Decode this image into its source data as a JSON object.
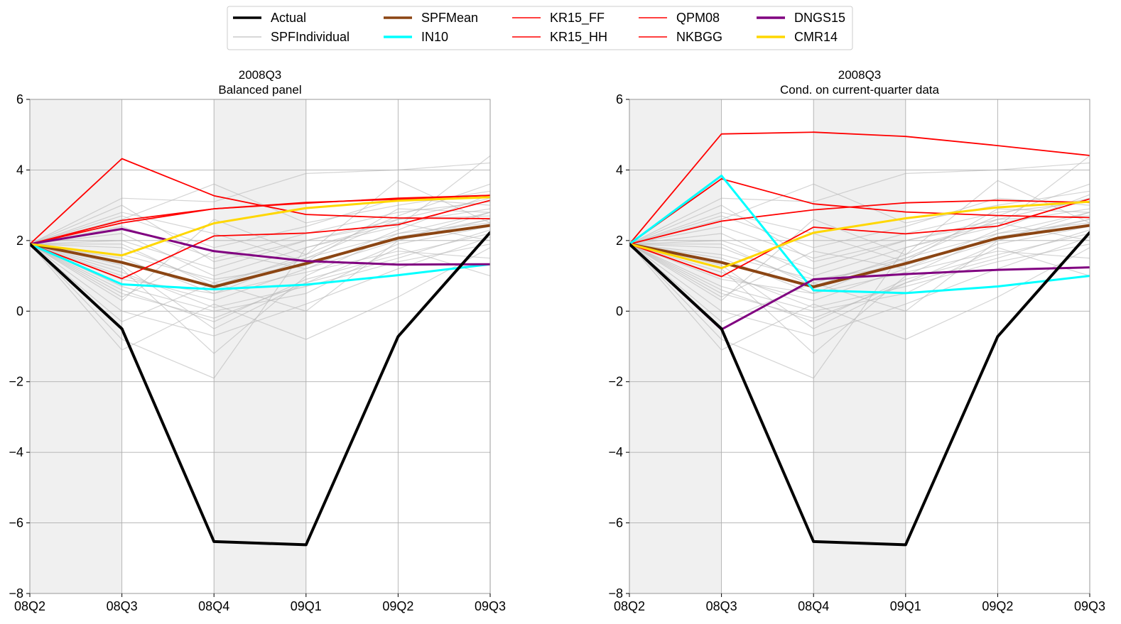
{
  "legend": {
    "entries": [
      {
        "label": "Actual",
        "color": "#000000",
        "style": "thick"
      },
      {
        "label": "SPFIndividual",
        "color": "#cccccc",
        "style": "thin"
      },
      {
        "label": "SPFMean",
        "color": "#8b4513",
        "style": "thick"
      },
      {
        "label": "IN10",
        "color": "#00ffff",
        "style": "thick"
      },
      {
        "label": "KR15_FF",
        "color": "#ff0000",
        "style": "thin"
      },
      {
        "label": "KR15_HH",
        "color": "#ff0000",
        "style": "thin"
      },
      {
        "label": "QPM08",
        "color": "#ff0000",
        "style": "thin"
      },
      {
        "label": "NKBGG",
        "color": "#ff0000",
        "style": "thin"
      },
      {
        "label": "DNGS15",
        "color": "#800080",
        "style": "thick"
      },
      {
        "label": "CMR14",
        "color": "#ffd700",
        "style": "thick"
      }
    ]
  },
  "chart_data": [
    {
      "type": "line",
      "title": "2008Q3",
      "subtitle": "Balanced panel",
      "xlabel": "",
      "ylabel": "",
      "categories": [
        "08Q2",
        "08Q3",
        "08Q4",
        "09Q1",
        "09Q2",
        "09Q3"
      ],
      "ylim": [
        -8,
        6
      ],
      "yticks": [
        -8,
        -6,
        -4,
        -2,
        0,
        2,
        4,
        6
      ],
      "grid": true,
      "shaded_categories": [
        "08Q2",
        "08Q4"
      ],
      "spf_individual": [
        [
          1.9,
          0.5,
          -0.2,
          0.8,
          1.5,
          2.3
        ],
        [
          1.9,
          1.0,
          0.3,
          1.2,
          2.0,
          2.6
        ],
        [
          1.9,
          2.0,
          1.2,
          2.0,
          2.5,
          2.9
        ],
        [
          1.9,
          0.0,
          -0.7,
          0.2,
          1.2,
          2.1
        ],
        [
          1.9,
          1.5,
          0.5,
          1.5,
          2.2,
          2.8
        ],
        [
          1.9,
          3.2,
          3.1,
          3.9,
          4.0,
          4.2
        ],
        [
          1.9,
          2.6,
          3.6,
          2.5,
          3.0,
          3.4
        ],
        [
          1.9,
          -0.8,
          -1.9,
          1.8,
          2.5,
          2.0
        ],
        [
          1.9,
          -1.1,
          0.2,
          -0.8,
          0.4,
          1.8
        ],
        [
          1.9,
          1.2,
          -1.2,
          1.0,
          2.2,
          2.5
        ],
        [
          1.9,
          0.7,
          0.0,
          0.5,
          1.8,
          1.0
        ],
        [
          1.9,
          2.7,
          1.8,
          2.4,
          3.2,
          3.0
        ],
        [
          1.9,
          1.8,
          0.8,
          1.5,
          2.6,
          2.7
        ],
        [
          1.9,
          0.3,
          2.6,
          1.6,
          2.7,
          3.6
        ],
        [
          1.9,
          1.3,
          -0.5,
          0.8,
          1.9,
          2.4
        ],
        [
          1.9,
          2.2,
          1.0,
          1.8,
          2.4,
          4.4
        ],
        [
          1.9,
          -0.3,
          0.8,
          0.0,
          2.0,
          2.8
        ],
        [
          1.9,
          0.9,
          0.5,
          1.1,
          1.7,
          1.5
        ],
        [
          1.9,
          2.4,
          1.5,
          2.2,
          2.8,
          3.1
        ],
        [
          1.9,
          1.6,
          0.9,
          1.3,
          2.1,
          2.6
        ],
        [
          1.9,
          0.6,
          -0.3,
          0.9,
          1.6,
          2.2
        ],
        [
          1.9,
          3.0,
          1.4,
          2.0,
          2.6,
          3.2
        ],
        [
          1.9,
          1.1,
          0.1,
          0.7,
          1.4,
          1.9
        ],
        [
          1.9,
          0.4,
          1.7,
          1.2,
          2.3,
          3.3
        ],
        [
          1.9,
          1.9,
          0.7,
          1.6,
          3.7,
          2.5
        ],
        [
          1.9,
          2.8,
          2.2,
          1.4,
          2.9,
          2.8
        ]
      ],
      "series": [
        {
          "name": "SPFMean",
          "color": "#8b4513",
          "width": 4,
          "values": [
            1.9,
            1.38,
            0.69,
            1.35,
            2.07,
            2.43
          ]
        },
        {
          "name": "KR15_FF",
          "color": "#ff0000",
          "width": 1.8,
          "values": [
            1.9,
            4.32,
            3.27,
            2.74,
            2.64,
            2.62
          ]
        },
        {
          "name": "KR15_HH",
          "color": "#ff0000",
          "width": 1.8,
          "values": [
            1.9,
            2.57,
            2.9,
            3.08,
            3.17,
            3.28
          ]
        },
        {
          "name": "QPM08",
          "color": "#ff0000",
          "width": 1.8,
          "values": [
            1.9,
            0.92,
            2.13,
            2.21,
            2.45,
            3.14
          ]
        },
        {
          "name": "NKBGG",
          "color": "#ff0000",
          "width": 1.8,
          "values": [
            1.9,
            2.5,
            2.9,
            3.06,
            3.2,
            3.28
          ]
        },
        {
          "name": "IN10",
          "color": "#00ffff",
          "width": 3,
          "values": [
            1.9,
            0.76,
            0.62,
            0.75,
            1.02,
            1.33
          ]
        },
        {
          "name": "DNGS15",
          "color": "#800080",
          "width": 3,
          "values": [
            1.9,
            2.33,
            1.7,
            1.42,
            1.32,
            1.33
          ]
        },
        {
          "name": "CMR14",
          "color": "#ffd700",
          "width": 3,
          "values": [
            1.9,
            1.58,
            2.49,
            2.92,
            3.13,
            3.23
          ]
        },
        {
          "name": "Actual",
          "color": "#000000",
          "width": 4,
          "values": [
            1.9,
            -0.5,
            -6.53,
            -6.62,
            -0.72,
            2.23
          ]
        }
      ]
    },
    {
      "type": "line",
      "title": "2008Q3",
      "subtitle": "Cond. on current-quarter data",
      "xlabel": "",
      "ylabel": "",
      "categories": [
        "08Q2",
        "08Q3",
        "08Q4",
        "09Q1",
        "09Q2",
        "09Q3"
      ],
      "ylim": [
        -8,
        6
      ],
      "yticks": [
        -8,
        -6,
        -4,
        -2,
        0,
        2,
        4,
        6
      ],
      "grid": true,
      "shaded_categories": [
        "08Q2",
        "08Q4"
      ],
      "spf_individual": [
        [
          1.9,
          0.5,
          -0.2,
          0.8,
          1.5,
          2.3
        ],
        [
          1.9,
          1.0,
          0.3,
          1.2,
          2.0,
          2.6
        ],
        [
          1.9,
          2.0,
          1.2,
          2.0,
          2.5,
          2.9
        ],
        [
          1.9,
          0.0,
          -0.7,
          0.2,
          1.2,
          2.1
        ],
        [
          1.9,
          1.5,
          0.5,
          1.5,
          2.2,
          2.8
        ],
        [
          1.9,
          3.2,
          3.1,
          3.9,
          4.0,
          4.2
        ],
        [
          1.9,
          2.6,
          3.6,
          2.5,
          3.0,
          3.4
        ],
        [
          1.9,
          -0.8,
          -1.9,
          1.8,
          2.5,
          2.0
        ],
        [
          1.9,
          -1.1,
          0.2,
          -0.8,
          0.4,
          1.8
        ],
        [
          1.9,
          1.2,
          -1.2,
          1.0,
          2.2,
          2.5
        ],
        [
          1.9,
          0.7,
          0.0,
          0.5,
          1.8,
          1.0
        ],
        [
          1.9,
          2.7,
          1.8,
          2.4,
          3.2,
          3.0
        ],
        [
          1.9,
          1.8,
          0.8,
          1.5,
          2.6,
          2.7
        ],
        [
          1.9,
          0.3,
          2.6,
          1.6,
          2.7,
          3.6
        ],
        [
          1.9,
          1.3,
          -0.5,
          0.8,
          1.9,
          2.4
        ],
        [
          1.9,
          2.2,
          1.0,
          1.8,
          2.4,
          4.4
        ],
        [
          1.9,
          -0.3,
          0.8,
          0.0,
          2.0,
          2.8
        ],
        [
          1.9,
          0.9,
          0.5,
          1.1,
          1.7,
          1.5
        ],
        [
          1.9,
          2.4,
          1.5,
          2.2,
          2.8,
          3.1
        ],
        [
          1.9,
          1.6,
          0.9,
          1.3,
          2.1,
          2.6
        ],
        [
          1.9,
          0.6,
          -0.3,
          0.9,
          1.6,
          2.2
        ],
        [
          1.9,
          3.0,
          1.4,
          2.0,
          2.6,
          3.2
        ],
        [
          1.9,
          1.1,
          0.1,
          0.7,
          1.4,
          1.9
        ],
        [
          1.9,
          0.4,
          1.7,
          1.2,
          2.3,
          3.3
        ],
        [
          1.9,
          1.9,
          0.7,
          1.6,
          3.7,
          2.5
        ],
        [
          1.9,
          2.8,
          2.2,
          1.4,
          2.9,
          2.8
        ]
      ],
      "series": [
        {
          "name": "SPFMean",
          "color": "#8b4513",
          "width": 4,
          "values": [
            1.9,
            1.38,
            0.69,
            1.35,
            2.07,
            2.43
          ]
        },
        {
          "name": "KR15_FF",
          "color": "#ff0000",
          "width": 1.8,
          "values": [
            1.9,
            5.02,
            5.07,
            4.95,
            4.69,
            4.41
          ]
        },
        {
          "name": "KR15_HH",
          "color": "#ff0000",
          "width": 1.8,
          "values": [
            1.9,
            3.75,
            3.04,
            2.81,
            2.71,
            2.65
          ]
        },
        {
          "name": "QPM08",
          "color": "#ff0000",
          "width": 1.8,
          "values": [
            1.9,
            0.98,
            2.38,
            2.19,
            2.41,
            3.18
          ]
        },
        {
          "name": "NKBGG",
          "color": "#ff0000",
          "width": 1.8,
          "values": [
            1.9,
            2.55,
            2.87,
            3.07,
            3.14,
            3.08
          ]
        },
        {
          "name": "IN10",
          "color": "#00ffff",
          "width": 3,
          "values": [
            1.9,
            3.84,
            0.59,
            0.51,
            0.7,
            1.0
          ]
        },
        {
          "name": "DNGS15",
          "color": "#800080",
          "width": 3,
          "values": [
            1.9,
            -0.52,
            0.9,
            1.05,
            1.17,
            1.24
          ]
        },
        {
          "name": "CMR14",
          "color": "#ffd700",
          "width": 3,
          "values": [
            1.9,
            1.22,
            2.22,
            2.63,
            2.94,
            3.1
          ]
        },
        {
          "name": "Actual",
          "color": "#000000",
          "width": 4,
          "values": [
            1.9,
            -0.5,
            -6.53,
            -6.62,
            -0.72,
            2.23
          ]
        }
      ]
    }
  ]
}
